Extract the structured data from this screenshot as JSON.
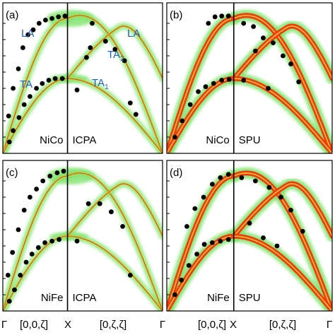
{
  "chart_data": [
    {
      "type": "scatter",
      "panel_label": "(a)",
      "system": "NiCo",
      "method": "ICPA",
      "mode_labels": [
        "LA",
        "TA",
        "TA2",
        "TA1",
        "LA"
      ],
      "mode_label_display": {
        "TA2": [
          "TA",
          "2"
        ],
        "TA1": [
          "TA",
          "1"
        ]
      },
      "ylim": [
        0,
        9
      ],
      "x_ticks": [
        "Γ",
        "X",
        "Γ"
      ],
      "measured": [
        {
          "x": 0.09,
          "y": 2.3
        },
        {
          "x": 0.16,
          "y": 4.0
        },
        {
          "x": 0.24,
          "y": 5.2
        },
        {
          "x": 0.31,
          "y": 6.5
        },
        {
          "x": 0.39,
          "y": 7.3
        },
        {
          "x": 0.47,
          "y": 7.6
        },
        {
          "x": 0.56,
          "y": 8.0
        },
        {
          "x": 0.66,
          "y": 8.2
        },
        {
          "x": 0.76,
          "y": 8.3
        },
        {
          "x": 0.86,
          "y": 8.4
        },
        {
          "x": 0.96,
          "y": 8.45
        },
        {
          "x": 0.1,
          "y": 0.7
        },
        {
          "x": 0.16,
          "y": 1.4
        },
        {
          "x": 0.25,
          "y": 2.2
        },
        {
          "x": 0.33,
          "y": 3.0
        },
        {
          "x": 0.42,
          "y": 3.5
        },
        {
          "x": 0.52,
          "y": 4.0
        },
        {
          "x": 0.61,
          "y": 4.3
        },
        {
          "x": 0.71,
          "y": 4.5
        },
        {
          "x": 0.81,
          "y": 4.6
        },
        {
          "x": 0.92,
          "y": 4.6
        },
        {
          "x": 1.1,
          "y": 3.9
        },
        {
          "x": 1.2,
          "y": 5.9
        },
        {
          "x": 1.24,
          "y": 6.5
        },
        {
          "x": 1.26,
          "y": 8.0
        },
        {
          "x": 1.4,
          "y": 6.9
        },
        {
          "x": 1.5,
          "y": 6.4
        },
        {
          "x": 1.6,
          "y": 5.7
        },
        {
          "x": 1.66,
          "y": 3.1
        },
        {
          "x": 1.72,
          "y": 2.4
        }
      ]
    },
    {
      "type": "scatter",
      "panel_label": "(b)",
      "system": "NiCo",
      "method": "SPU",
      "ylim": [
        0,
        9
      ],
      "x_ticks": [
        "Γ",
        "X",
        "Γ"
      ],
      "measured": [
        {
          "x": 0.12,
          "y": 1.0
        },
        {
          "x": 0.23,
          "y": 2.0
        },
        {
          "x": 0.35,
          "y": 3.0
        },
        {
          "x": 0.47,
          "y": 3.8
        },
        {
          "x": 0.58,
          "y": 4.1
        },
        {
          "x": 0.7,
          "y": 4.3
        },
        {
          "x": 0.82,
          "y": 4.5
        },
        {
          "x": 0.93,
          "y": 4.55
        },
        {
          "x": 0.62,
          "y": 8.0
        },
        {
          "x": 0.72,
          "y": 8.4
        },
        {
          "x": 0.82,
          "y": 8.45
        },
        {
          "x": 0.92,
          "y": 8.45
        },
        {
          "x": 1.1,
          "y": 8.0
        },
        {
          "x": 1.2,
          "y": 7.8
        },
        {
          "x": 1.3,
          "y": 7.1
        },
        {
          "x": 1.4,
          "y": 6.8
        },
        {
          "x": 1.5,
          "y": 6.0
        },
        {
          "x": 1.58,
          "y": 5.5
        },
        {
          "x": 1.66,
          "y": 4.4
        },
        {
          "x": 1.1,
          "y": 4.5
        },
        {
          "x": 1.22,
          "y": 6.3
        },
        {
          "x": 1.35,
          "y": 4.0
        }
      ]
    },
    {
      "type": "scatter",
      "panel_label": "(c)",
      "system": "NiFe",
      "method": "ICPA",
      "ylim": [
        0,
        9
      ],
      "x_ticks": [
        "Γ",
        "X",
        "Γ"
      ],
      "measured": [
        {
          "x": 0.08,
          "y": 2.2
        },
        {
          "x": 0.15,
          "y": 3.6
        },
        {
          "x": 0.24,
          "y": 5.0
        },
        {
          "x": 0.33,
          "y": 6.2
        },
        {
          "x": 0.42,
          "y": 7.0
        },
        {
          "x": 0.52,
          "y": 7.5
        },
        {
          "x": 0.62,
          "y": 8.0
        },
        {
          "x": 0.73,
          "y": 8.3
        },
        {
          "x": 0.84,
          "y": 8.5
        },
        {
          "x": 0.94,
          "y": 8.6
        },
        {
          "x": 0.1,
          "y": 0.6
        },
        {
          "x": 0.18,
          "y": 1.3
        },
        {
          "x": 0.27,
          "y": 2.2
        },
        {
          "x": 0.36,
          "y": 3.0
        },
        {
          "x": 0.45,
          "y": 3.5
        },
        {
          "x": 0.55,
          "y": 3.9
        },
        {
          "x": 0.65,
          "y": 4.2
        },
        {
          "x": 0.76,
          "y": 4.3
        },
        {
          "x": 0.87,
          "y": 4.4
        },
        {
          "x": 1.1,
          "y": 4.3
        },
        {
          "x": 1.22,
          "y": 6.6
        },
        {
          "x": 1.34,
          "y": 6.6
        },
        {
          "x": 1.46,
          "y": 6.1
        },
        {
          "x": 1.58,
          "y": 5.2
        },
        {
          "x": 1.66,
          "y": 2.2
        }
      ]
    },
    {
      "type": "scatter",
      "panel_label": "(d)",
      "system": "NiFe",
      "method": "SPU",
      "ylim": [
        0,
        9
      ],
      "x_ticks": [
        "Γ",
        "X",
        "Γ"
      ],
      "measured": [
        {
          "x": 0.12,
          "y": 1.0
        },
        {
          "x": 0.22,
          "y": 1.9
        },
        {
          "x": 0.33,
          "y": 2.8
        },
        {
          "x": 0.45,
          "y": 3.5
        },
        {
          "x": 0.56,
          "y": 4.1
        },
        {
          "x": 0.68,
          "y": 4.2
        },
        {
          "x": 0.8,
          "y": 4.3
        },
        {
          "x": 0.92,
          "y": 4.4
        },
        {
          "x": 0.3,
          "y": 5.2
        },
        {
          "x": 0.42,
          "y": 6.3
        },
        {
          "x": 0.55,
          "y": 7.0
        },
        {
          "x": 0.68,
          "y": 7.8
        },
        {
          "x": 0.8,
          "y": 8.2
        },
        {
          "x": 0.92,
          "y": 8.4
        },
        {
          "x": 1.08,
          "y": 8.2
        },
        {
          "x": 1.22,
          "y": 8.0
        },
        {
          "x": 1.36,
          "y": 7.6
        },
        {
          "x": 1.48,
          "y": 7.0
        },
        {
          "x": 1.58,
          "y": 6.2
        },
        {
          "x": 1.7,
          "y": 4.9
        },
        {
          "x": 1.16,
          "y": 5.4
        },
        {
          "x": 1.3,
          "y": 4.5
        },
        {
          "x": 1.44,
          "y": 4.0
        }
      ]
    }
  ],
  "x_axis": {
    "tick_labels": [
      "Γ",
      "[0,0,ζ]",
      "X",
      "[0,ζ,ζ]",
      "Γ",
      "[0,0,ζ]",
      "X",
      "[0,ζ,ζ]",
      "Γ"
    ]
  },
  "colors": {
    "cloud_green": "#7ee36a",
    "ridge_red": "#f03a10",
    "ridge_yellow": "#f5c531",
    "curve": "#a86d1e",
    "mode_text": "#1f5fbf",
    "points": "#000000"
  }
}
